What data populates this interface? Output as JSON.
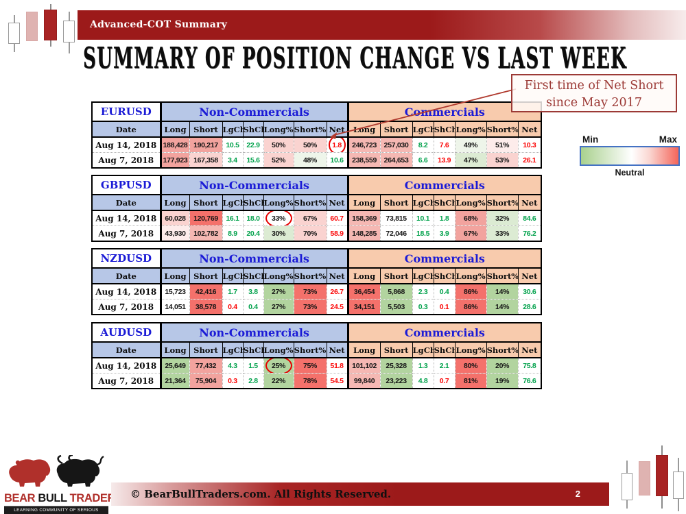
{
  "slide": {
    "kicker": "Advanced-COT Summary",
    "title": "SUMMARY OF POSITION CHANGE VS LAST WEEK",
    "page_number": "2"
  },
  "annotation": {
    "line1": "First time of Net Short",
    "line2": "since May 2017",
    "color": "#9c3a36"
  },
  "legend": {
    "min": "Min",
    "max": "Max",
    "neutral": "Neutral",
    "min_color": "#a9d18e",
    "max_color": "#f4655a",
    "border_color": "#4472c4"
  },
  "table_template": {
    "date_header": "Date",
    "group_noncommercials": "Non-Commercials",
    "group_commercials": "Commercials",
    "columns": [
      "Long",
      "Short",
      "LgCh",
      "ShCh",
      "Long%",
      "Short%",
      "Net"
    ]
  },
  "tables": [
    {
      "pair": "EURUSD",
      "rows": [
        {
          "date": "Aug 14, 2018",
          "nc": [
            [
              "188,428",
              "r1",
              "k"
            ],
            [
              "190,217",
              "r1",
              "k"
            ],
            [
              "10.5",
              "w",
              "G"
            ],
            [
              "22.9",
              "w",
              "G"
            ],
            [
              "50%",
              "p1",
              "k"
            ],
            [
              "50%",
              "p1",
              "k"
            ],
            [
              "1.8",
              "w",
              "R",
              1
            ]
          ],
          "c": [
            [
              "246,723",
              "p2",
              "k"
            ],
            [
              "257,030",
              "p2",
              "k"
            ],
            [
              "8.2",
              "w",
              "G"
            ],
            [
              "7.6",
              "w",
              "R"
            ],
            [
              "49%",
              "g0",
              "k"
            ],
            [
              "51%",
              "p0",
              "k"
            ],
            [
              "10.3",
              "w",
              "R"
            ]
          ]
        },
        {
          "date": "Aug 7, 2018",
          "nc": [
            [
              "177,923",
              "r1",
              "k"
            ],
            [
              "167,358",
              "p1",
              "k"
            ],
            [
              "3.4",
              "w",
              "G"
            ],
            [
              "15.6",
              "w",
              "G"
            ],
            [
              "52%",
              "p1",
              "k"
            ],
            [
              "48%",
              "g0",
              "k"
            ],
            [
              "10.6",
              "w",
              "G"
            ]
          ],
          "c": [
            [
              "238,559",
              "p2",
              "k"
            ],
            [
              "264,653",
              "p2",
              "k"
            ],
            [
              "6.6",
              "w",
              "G"
            ],
            [
              "13.9",
              "w",
              "R"
            ],
            [
              "47%",
              "g1",
              "k"
            ],
            [
              "53%",
              "p1",
              "k"
            ],
            [
              "26.1",
              "w",
              "R"
            ]
          ]
        }
      ]
    },
    {
      "pair": "GBPUSD",
      "rows": [
        {
          "date": "Aug 14, 2018",
          "nc": [
            [
              "60,028",
              "p1",
              "k"
            ],
            [
              "120,769",
              "r2",
              "k"
            ],
            [
              "16.1",
              "w",
              "G"
            ],
            [
              "18.0",
              "w",
              "G"
            ],
            [
              "33%",
              "w",
              "k",
              1
            ],
            [
              "67%",
              "p1",
              "k"
            ],
            [
              "60.7",
              "w",
              "R"
            ]
          ],
          "c": [
            [
              "158,369",
              "p2",
              "k"
            ],
            [
              "73,815",
              "w",
              "k"
            ],
            [
              "10.1",
              "w",
              "G"
            ],
            [
              "1.8",
              "w",
              "G"
            ],
            [
              "68%",
              "r1",
              "k"
            ],
            [
              "32%",
              "g1",
              "k"
            ],
            [
              "84.6",
              "w",
              "G"
            ]
          ]
        },
        {
          "date": "Aug 7, 2018",
          "nc": [
            [
              "43,930",
              "p0",
              "k"
            ],
            [
              "102,782",
              "p2",
              "k"
            ],
            [
              "8.9",
              "w",
              "G"
            ],
            [
              "20.4",
              "w",
              "G"
            ],
            [
              "30%",
              "g1",
              "k"
            ],
            [
              "70%",
              "p1",
              "k"
            ],
            [
              "58.9",
              "w",
              "R"
            ]
          ],
          "c": [
            [
              "148,285",
              "p2",
              "k"
            ],
            [
              "72,046",
              "w",
              "k"
            ],
            [
              "18.5",
              "w",
              "G"
            ],
            [
              "3.9",
              "w",
              "G"
            ],
            [
              "67%",
              "r1",
              "k"
            ],
            [
              "33%",
              "g1",
              "k"
            ],
            [
              "76.2",
              "w",
              "G"
            ]
          ]
        }
      ]
    },
    {
      "pair": "NZDUSD",
      "rows": [
        {
          "date": "Aug 14, 2018",
          "nc": [
            [
              "15,723",
              "w",
              "k"
            ],
            [
              "42,416",
              "r2",
              "k"
            ],
            [
              "1.7",
              "w",
              "G"
            ],
            [
              "3.8",
              "w",
              "G"
            ],
            [
              "27%",
              "g2",
              "k"
            ],
            [
              "73%",
              "r2",
              "k"
            ],
            [
              "26.7",
              "w",
              "R"
            ]
          ],
          "c": [
            [
              "36,454",
              "r2",
              "k"
            ],
            [
              "5,868",
              "g2",
              "k"
            ],
            [
              "2.3",
              "w",
              "G"
            ],
            [
              "0.4",
              "w",
              "G"
            ],
            [
              "86%",
              "r2",
              "k"
            ],
            [
              "14%",
              "g2",
              "k"
            ],
            [
              "30.6",
              "w",
              "G"
            ]
          ]
        },
        {
          "date": "Aug 7, 2018",
          "nc": [
            [
              "14,051",
              "w",
              "k"
            ],
            [
              "38,578",
              "r2",
              "k"
            ],
            [
              "0.4",
              "w",
              "R"
            ],
            [
              "0.4",
              "w",
              "G"
            ],
            [
              "27%",
              "g2",
              "k"
            ],
            [
              "73%",
              "r2",
              "k"
            ],
            [
              "24.5",
              "w",
              "R"
            ]
          ],
          "c": [
            [
              "34,151",
              "r2",
              "k"
            ],
            [
              "5,503",
              "g2",
              "k"
            ],
            [
              "0.3",
              "w",
              "G"
            ],
            [
              "0.1",
              "w",
              "R"
            ],
            [
              "86%",
              "r2",
              "k"
            ],
            [
              "14%",
              "g2",
              "k"
            ],
            [
              "28.6",
              "w",
              "G"
            ]
          ]
        }
      ]
    },
    {
      "pair": "AUDUSD",
      "rows": [
        {
          "date": "Aug 14, 2018",
          "nc": [
            [
              "25,649",
              "g2",
              "k"
            ],
            [
              "77,432",
              "r1",
              "k"
            ],
            [
              "4.3",
              "w",
              "G"
            ],
            [
              "1.5",
              "w",
              "G"
            ],
            [
              "25%",
              "g2",
              "k",
              1
            ],
            [
              "75%",
              "r2",
              "k"
            ],
            [
              "51.8",
              "w",
              "R"
            ]
          ],
          "c": [
            [
              "101,102",
              "p2",
              "k"
            ],
            [
              "25,328",
              "g2",
              "k"
            ],
            [
              "1.3",
              "w",
              "G"
            ],
            [
              "2.1",
              "w",
              "G"
            ],
            [
              "80%",
              "r2",
              "k"
            ],
            [
              "20%",
              "g2",
              "k"
            ],
            [
              "75.8",
              "w",
              "G"
            ]
          ]
        },
        {
          "date": "Aug 7, 2018",
          "nc": [
            [
              "21,364",
              "g2",
              "k"
            ],
            [
              "75,904",
              "r1",
              "k"
            ],
            [
              "0.3",
              "w",
              "R"
            ],
            [
              "2.8",
              "w",
              "G"
            ],
            [
              "22%",
              "g2",
              "k"
            ],
            [
              "78%",
              "r2",
              "k"
            ],
            [
              "54.5",
              "w",
              "R"
            ]
          ],
          "c": [
            [
              "99,840",
              "p2",
              "k"
            ],
            [
              "23,223",
              "g2",
              "k"
            ],
            [
              "4.8",
              "w",
              "G"
            ],
            [
              "0.7",
              "w",
              "R"
            ],
            [
              "81%",
              "r2",
              "k"
            ],
            [
              "19%",
              "g2",
              "k"
            ],
            [
              "76.6",
              "w",
              "G"
            ]
          ]
        }
      ]
    }
  ],
  "footer": {
    "brand_word1": "BEAR",
    "brand_word2": "BULL",
    "brand_word3": "TRADERS",
    "tagline": "LEARNING COMMUNITY OF SERIOUS TRADERS",
    "copyright": "© BearBullTraders.com. All Rights Reserved."
  },
  "colors": {
    "banner_red": "#9c1a1a",
    "table_header_blue_text": "#1b1bd6",
    "noncommercials_bg": "#b7c7e7",
    "commercials_bg": "#f8cbad",
    "heat_strong_red": "#f4716b",
    "heat_salmon": "#f2a39e",
    "heat_mid_pink": "#f5b8b3",
    "heat_light_pink": "#fad3d0",
    "heat_faint_pink": "#fdeceb",
    "heat_green": "#b2d49f",
    "heat_light_green": "#dcebd3",
    "heat_faint_green": "#eef5ea",
    "value_green_text": "#00a14b",
    "value_red_text": "#fb0505",
    "circle_red": "#e60000"
  }
}
